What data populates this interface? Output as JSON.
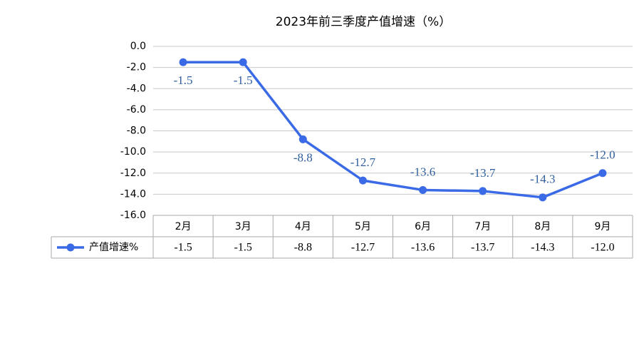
{
  "chart_data": {
    "type": "line",
    "title": "2023年前三季度产值增速（%）",
    "categories": [
      "2月",
      "3月",
      "4月",
      "5月",
      "6月",
      "7月",
      "8月",
      "9月"
    ],
    "series": [
      {
        "name": "产值增速%",
        "color": "#3b6ae6",
        "values": [
          -1.5,
          -1.5,
          -8.8,
          -12.7,
          -13.6,
          -13.7,
          -14.3,
          -12.0
        ],
        "value_labels": [
          "-1.5",
          "-1.5",
          "-8.8",
          "-12.7",
          "-13.6",
          "-13.7",
          "-14.3",
          "-12.0"
        ]
      }
    ],
    "ylim": [
      -16,
      0
    ],
    "yticks": [
      {
        "value": 0,
        "label": "0.0"
      },
      {
        "value": -2,
        "label": "-2.0"
      },
      {
        "value": -4,
        "label": "-4.0"
      },
      {
        "value": -6,
        "label": "-6.0"
      },
      {
        "value": -8,
        "label": "-8.0"
      },
      {
        "value": -10,
        "label": "-10.0"
      },
      {
        "value": -12,
        "label": "-12.0"
      },
      {
        "value": -14,
        "label": "-14.0"
      },
      {
        "value": -16,
        "label": "-16.0"
      }
    ],
    "grid": true,
    "data_table": true
  }
}
